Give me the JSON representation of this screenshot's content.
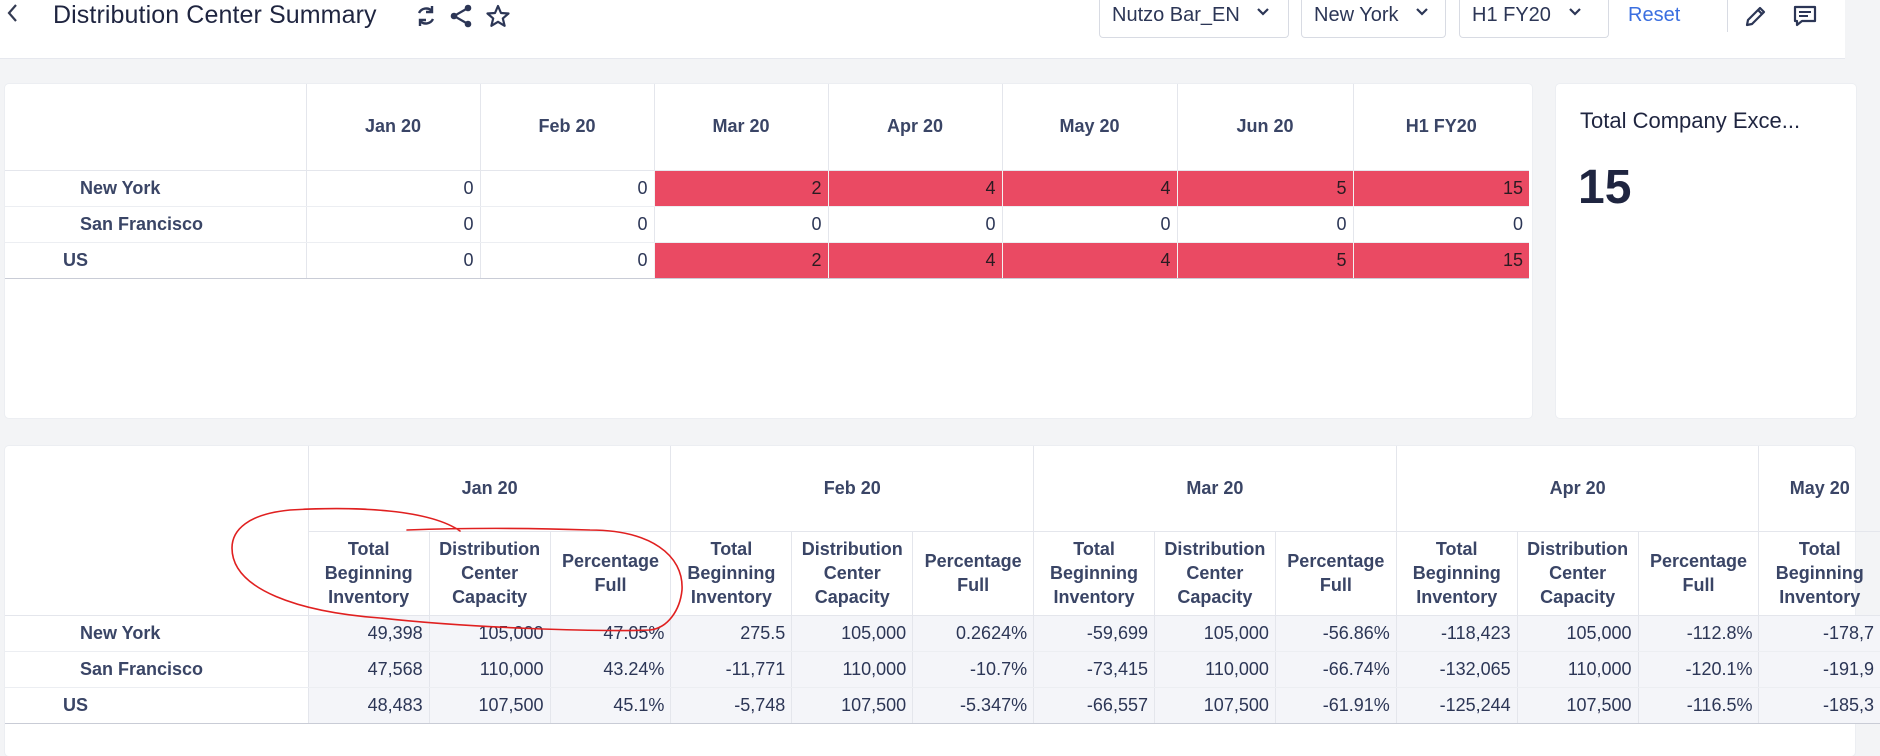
{
  "header": {
    "back_icon": "chevron-left-icon",
    "title": "Distribution Center Summary",
    "icons": [
      "refresh-icon",
      "share-icon",
      "star-icon"
    ],
    "filters": [
      {
        "label": "Nutzo Bar_EN"
      },
      {
        "label": "New York"
      },
      {
        "label": "H1 FY20"
      }
    ],
    "reset_label": "Reset",
    "right_icons": [
      "edit-icon",
      "comment-icon"
    ]
  },
  "exceptions_table": {
    "columns": [
      "Jan 20",
      "Feb 20",
      "Mar 20",
      "Apr 20",
      "May 20",
      "Jun 20",
      "H1 FY20"
    ],
    "rows": [
      {
        "label": "New York",
        "level": "child",
        "values": [
          "0",
          "0",
          "2",
          "4",
          "4",
          "5",
          "15"
        ],
        "highlight": [
          false,
          false,
          true,
          true,
          true,
          true,
          true
        ]
      },
      {
        "label": "San Francisco",
        "level": "child",
        "values": [
          "0",
          "0",
          "0",
          "0",
          "0",
          "0",
          "0"
        ],
        "highlight": [
          false,
          false,
          false,
          false,
          false,
          false,
          false
        ]
      },
      {
        "label": "US",
        "level": "parent",
        "values": [
          "0",
          "0",
          "2",
          "4",
          "4",
          "5",
          "15"
        ],
        "highlight": [
          false,
          false,
          true,
          true,
          true,
          true,
          true
        ]
      }
    ],
    "highlight_color": "#ea4a63"
  },
  "kpi": {
    "title": "Total Company Exce...",
    "value": "15"
  },
  "inventory_table": {
    "months": [
      "Jan 20",
      "Feb 20",
      "Mar 20",
      "Apr 20",
      "May 20"
    ],
    "measures": [
      "Total Beginning Inventory",
      "Distribution Center Capacity",
      "Percentage Full"
    ],
    "rows": [
      {
        "label": "New York",
        "level": "child",
        "values": [
          "49,398",
          "105,000",
          "47.05%",
          "275.5",
          "105,000",
          "0.2624%",
          "-59,699",
          "105,000",
          "-56.86%",
          "-118,423",
          "105,000",
          "-112.8%",
          "-178,7"
        ]
      },
      {
        "label": "San Francisco",
        "level": "child",
        "values": [
          "47,568",
          "110,000",
          "43.24%",
          "-11,771",
          "110,000",
          "-10.7%",
          "-73,415",
          "110,000",
          "-66.74%",
          "-132,065",
          "110,000",
          "-120.1%",
          "-191,9"
        ]
      },
      {
        "label": "US",
        "level": "parent",
        "values": [
          "48,483",
          "107,500",
          "45.1%",
          "-5,748",
          "107,500",
          "-5.347%",
          "-66,557",
          "107,500",
          "-61.91%",
          "-125,244",
          "107,500",
          "-116.5%",
          "-185,3"
        ]
      }
    ]
  },
  "annotation": {
    "color": "#e02020"
  }
}
